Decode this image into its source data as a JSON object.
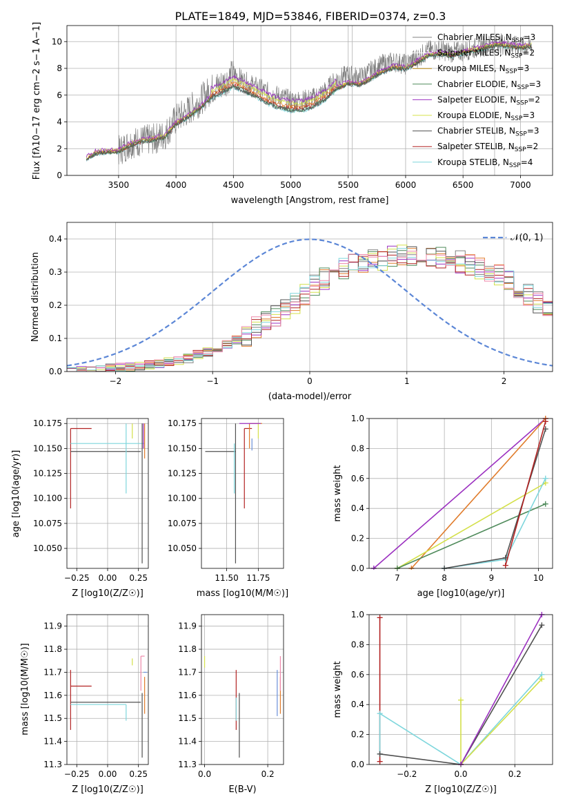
{
  "figure": {
    "title": "PLATE=1849, MJD=53846, FIBERID=0374, z=0.3"
  },
  "legend_entries": [
    {
      "label": "Chabrier MILES, N",
      "sub": "SSP",
      "suffix": "=3",
      "color": "#808080"
    },
    {
      "label": "Salpeter MILES, N",
      "sub": "SSP",
      "suffix": "=2",
      "color": "#ffffff"
    },
    {
      "label": "Kroupa MILES, N",
      "sub": "SSP",
      "suffix": "=3",
      "color": "#b8860b"
    },
    {
      "label": "Chabrier ELODIE, N",
      "sub": "SSP",
      "suffix": "=3",
      "color": "#4e8a5a"
    },
    {
      "label": "Salpeter ELODIE, N",
      "sub": "SSP",
      "suffix": "=2",
      "color": "#9b30c0"
    },
    {
      "label": "Kroupa ELODIE, N",
      "sub": "SSP",
      "suffix": "=3",
      "color": "#d4e04a"
    },
    {
      "label": "Chabrier STELIB, N",
      "sub": "SSP",
      "suffix": "=3",
      "color": "#505050"
    },
    {
      "label": "Salpeter STELIB, N",
      "sub": "SSP",
      "suffix": "=2",
      "color": "#b22222"
    },
    {
      "label": "Kroupa STELIB, N",
      "sub": "SSP",
      "suffix": "=4",
      "color": "#7dd6dc"
    }
  ],
  "chart_data": [
    {
      "id": "spectrum",
      "type": "line",
      "title": "PLATE=1849, MJD=53846, FIBERID=0374, z=0.3",
      "xlabel": "wavelength [Angstrom, rest frame]",
      "ylabel": "Flux [f",
      "ylabel_full": "Flux [fλ10−17 erg cm−2 s−1 A−1]",
      "xlim": [
        3050,
        7280
      ],
      "ylim": [
        0,
        11.2
      ],
      "xticks": [
        3500,
        4000,
        4500,
        5000,
        5500,
        6000,
        6500,
        7000
      ],
      "yticks": [
        0,
        2,
        4,
        6,
        8,
        10
      ],
      "data_x": [
        3220,
        3300,
        3400,
        3500,
        3600,
        3700,
        3800,
        3900,
        4000,
        4100,
        4200,
        4300,
        4400,
        4500,
        4600,
        4700,
        4800,
        4900,
        5000,
        5100,
        5200,
        5300,
        5400,
        5500,
        5600,
        5700,
        5800,
        5900,
        6000,
        6100,
        6200,
        6300,
        6400,
        6500,
        6600,
        6700,
        6800,
        6900,
        7000,
        7100
      ],
      "data_y": [
        1.2,
        1.6,
        1.7,
        1.8,
        2.4,
        2.6,
        2.7,
        3.0,
        4.2,
        4.8,
        5.5,
        6.4,
        6.8,
        7.6,
        7.0,
        6.6,
        6.2,
        5.9,
        5.6,
        5.6,
        5.8,
        6.3,
        7.2,
        7.5,
        7.3,
        7.8,
        8.3,
        8.5,
        8.3,
        8.8,
        9.3,
        9.4,
        9.2,
        9.3,
        9.5,
        9.7,
        9.9,
        9.7,
        9.6,
        9.7
      ],
      "model_x": [
        3220,
        3300,
        3400,
        3500,
        3600,
        3700,
        3800,
        3900,
        4000,
        4100,
        4200,
        4300,
        4400,
        4500,
        4600,
        4700,
        4800,
        4900,
        5000,
        5100,
        5200,
        5300,
        5400,
        5500,
        5600,
        5700,
        5800,
        5900,
        6000,
        6100,
        6200,
        6300,
        6400,
        6500,
        6600,
        6700,
        6800,
        6900,
        7000,
        7100
      ],
      "model_y": [
        1.2,
        1.6,
        1.7,
        1.7,
        2.2,
        2.5,
        2.6,
        2.8,
        3.8,
        4.3,
        4.9,
        5.7,
        6.1,
        6.6,
        6.2,
        5.8,
        5.3,
        5.0,
        4.8,
        4.8,
        5.1,
        5.6,
        6.4,
        6.8,
        6.7,
        7.2,
        7.7,
        8.0,
        7.9,
        8.4,
        8.9,
        9.0,
        8.9,
        9.1,
        9.3,
        9.5,
        9.7,
        9.6,
        9.5,
        9.6
      ],
      "gap_lines_x": [
        4740,
        5535,
        6775
      ]
    },
    {
      "id": "residuals",
      "type": "line",
      "xlabel": "(data-model)/error",
      "ylabel": "Normed distribution",
      "xlim": [
        -2.5,
        2.5
      ],
      "ylim": [
        0,
        0.45
      ],
      "xticks": [
        -2,
        -1,
        0,
        1,
        2
      ],
      "yticks": [
        0.0,
        0.1,
        0.2,
        0.3,
        0.4
      ],
      "legend": "𝒩(0, 1)",
      "bin_edges": [
        -2.5,
        -2.4,
        -2.3,
        -2.2,
        -2.1,
        -2.0,
        -1.9,
        -1.8,
        -1.7,
        -1.6,
        -1.5,
        -1.4,
        -1.3,
        -1.2,
        -1.1,
        -1.0,
        -0.9,
        -0.8,
        -0.7,
        -0.6,
        -0.5,
        -0.4,
        -0.3,
        -0.2,
        -0.1,
        0.0,
        0.1,
        0.2,
        0.3,
        0.4,
        0.5,
        0.6,
        0.7,
        0.8,
        0.9,
        1.0,
        1.1,
        1.2,
        1.3,
        1.4,
        1.5,
        1.6,
        1.7,
        1.8,
        1.9,
        2.0,
        2.1,
        2.2,
        2.3,
        2.4,
        2.5
      ],
      "hist_base": [
        0.003,
        0.004,
        0.005,
        0.008,
        0.01,
        0.012,
        0.014,
        0.017,
        0.02,
        0.025,
        0.03,
        0.035,
        0.04,
        0.05,
        0.058,
        0.067,
        0.08,
        0.095,
        0.11,
        0.13,
        0.15,
        0.17,
        0.19,
        0.21,
        0.23,
        0.26,
        0.28,
        0.3,
        0.31,
        0.32,
        0.33,
        0.34,
        0.34,
        0.35,
        0.35,
        0.35,
        0.35,
        0.34,
        0.34,
        0.33,
        0.33,
        0.32,
        0.31,
        0.3,
        0.29,
        0.27,
        0.25,
        0.23,
        0.21,
        0.19
      ]
    },
    {
      "id": "age-vs-z",
      "type": "scatter",
      "xlabel": "Z [log10(Z/Z☉)]",
      "ylabel": "age  [log10(age/yr)]",
      "xlim": [
        -0.33,
        0.33
      ],
      "ylim": [
        10.03,
        10.18
      ],
      "xticks": [
        -0.25,
        0.0,
        0.25
      ],
      "xtick_labels": [
        "−0.25",
        "0.00",
        "0.25"
      ],
      "yticks": [
        10.05,
        10.075,
        10.1,
        10.125,
        10.15,
        10.175
      ],
      "ytick_labels": [
        "10.050",
        "10.075",
        "10.100",
        "10.125",
        "10.150",
        "10.175"
      ]
    },
    {
      "id": "age-vs-mass",
      "type": "scatter",
      "xlabel": "mass [log10(M/M☉)]",
      "ylim": [
        10.03,
        10.18
      ],
      "xlim": [
        11.3,
        11.95
      ],
      "xticks": [
        11.5,
        11.75
      ],
      "xtick_labels": [
        "11.50",
        "11.75"
      ],
      "yticks": [
        10.05,
        10.075,
        10.1,
        10.125,
        10.15,
        10.175
      ],
      "ytick_labels": [
        "10.050",
        "10.075",
        "10.100",
        "10.125",
        "10.150",
        "10.175"
      ]
    },
    {
      "id": "weight-vs-age",
      "type": "line",
      "xlabel": "age  [log10(age/yr)]",
      "ylabel": "mass weight",
      "xlim": [
        6.4,
        10.3
      ],
      "ylim": [
        0,
        1.0
      ],
      "xticks": [
        7,
        8,
        9,
        10
      ],
      "yticks": [
        0.0,
        0.2,
        0.4,
        0.6,
        0.8,
        1.0
      ],
      "ytick_labels": [
        "0.0",
        "0.2",
        "0.4",
        "0.6",
        "0.8",
        "1.0"
      ],
      "series": [
        {
          "color": "#9b30c0",
          "x": [
            6.5,
            10.15
          ],
          "y": [
            0.0,
            1.0
          ]
        },
        {
          "color": "#e07b2a",
          "x": [
            7.3,
            10.15
          ],
          "y": [
            0.0,
            1.0
          ]
        },
        {
          "color": "#d4e04a",
          "x": [
            7.0,
            10.15
          ],
          "y": [
            0.0,
            0.57
          ]
        },
        {
          "color": "#4e8a5a",
          "x": [
            7.0,
            10.15
          ],
          "y": [
            0.0,
            0.43
          ]
        },
        {
          "color": "#7dd6dc",
          "x": [
            8.0,
            9.3,
            10.15
          ],
          "y": [
            0.0,
            0.06,
            0.6
          ]
        },
        {
          "color": "#505050",
          "x": [
            8.0,
            9.3,
            10.15
          ],
          "y": [
            0.0,
            0.07,
            0.93
          ]
        },
        {
          "color": "#b22222",
          "x": [
            9.3,
            10.15
          ],
          "y": [
            0.02,
            0.98
          ]
        }
      ]
    },
    {
      "id": "mass-vs-z",
      "type": "scatter",
      "xlabel": "Z [log10(Z/Z☉)]",
      "ylabel": "mass [log10(M/M☉)]",
      "xlim": [
        -0.33,
        0.33
      ],
      "ylim": [
        11.3,
        11.95
      ],
      "xticks": [
        -0.25,
        0.0,
        0.25
      ],
      "xtick_labels": [
        "−0.25",
        "0.00",
        "0.25"
      ],
      "yticks": [
        11.3,
        11.4,
        11.5,
        11.6,
        11.7,
        11.8,
        11.9
      ],
      "ytick_labels": [
        "11.3",
        "11.4",
        "11.5",
        "11.6",
        "11.7",
        "11.8",
        "11.9"
      ]
    },
    {
      "id": "mass-vs-ebv",
      "type": "scatter",
      "xlabel": "E(B-V)",
      "xlim": [
        -0.01,
        0.25
      ],
      "ylim": [
        11.3,
        11.95
      ],
      "xticks": [
        0.0,
        0.2
      ],
      "xtick_labels": [
        "0.0",
        "0.2"
      ],
      "yticks": [
        11.3,
        11.4,
        11.5,
        11.6,
        11.7,
        11.8,
        11.9
      ],
      "ytick_labels": [
        "11.3",
        "11.4",
        "11.5",
        "11.6",
        "11.7",
        "11.8",
        "11.9"
      ]
    },
    {
      "id": "weight-vs-z",
      "type": "line",
      "xlabel": "Z [log10(Z/Z☉)]",
      "ylabel": "mass weight",
      "xlim": [
        -0.34,
        0.34
      ],
      "ylim": [
        0,
        1.0
      ],
      "xticks": [
        -0.2,
        0.0,
        0.2
      ],
      "xtick_labels": [
        "−0.2",
        "0.0",
        "0.2"
      ],
      "yticks": [
        0.0,
        0.2,
        0.4,
        0.6,
        0.8,
        1.0
      ],
      "ytick_labels": [
        "0.0",
        "0.2",
        "0.4",
        "0.6",
        "0.8",
        "1.0"
      ],
      "series": [
        {
          "color": "#b22222",
          "x": [
            -0.3,
            -0.3
          ],
          "y": [
            0.02,
            0.98
          ]
        },
        {
          "color": "#7dd6dc",
          "x": [
            -0.3,
            -0.3,
            0.0,
            0.3
          ],
          "y": [
            0.07,
            0.34,
            0.0,
            0.6
          ]
        },
        {
          "color": "#505050",
          "x": [
            -0.3,
            0.0,
            0.3
          ],
          "y": [
            0.07,
            0.0,
            0.93
          ]
        },
        {
          "color": "#d4e04a",
          "x": [
            0.0,
            0.0,
            0.3
          ],
          "y": [
            0.43,
            0.0,
            0.57
          ]
        },
        {
          "color": "#9b30c0",
          "x": [
            0.0,
            0.3
          ],
          "y": [
            0.0,
            1.0
          ]
        }
      ]
    }
  ]
}
